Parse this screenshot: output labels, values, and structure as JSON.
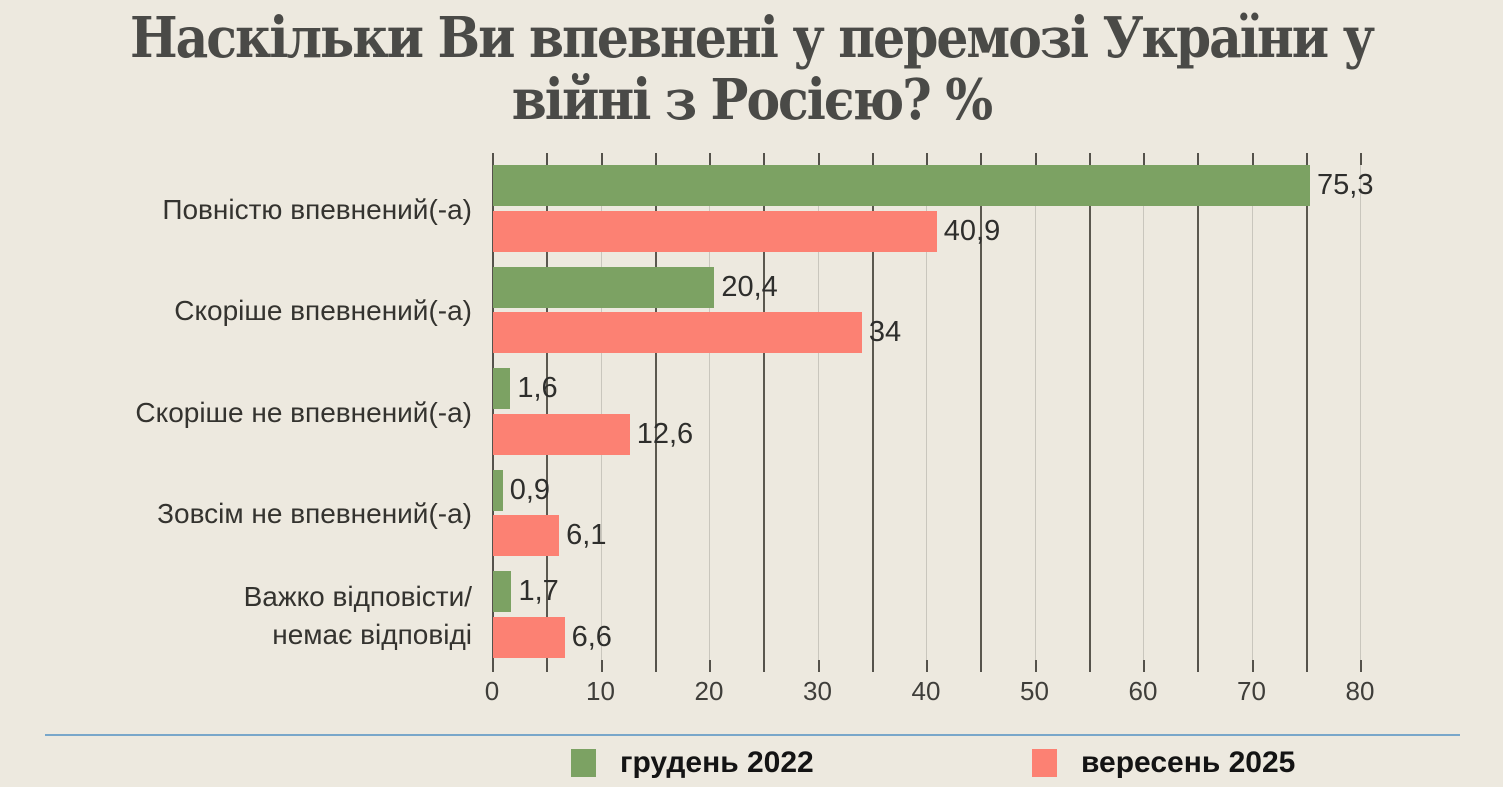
{
  "title": "Наскільки Ви впевнені у перемозі України у війні з Росією? %",
  "title_lines": [
    "Наскільки Ви впевнені у перемозі України у",
    "війні з Росією? %"
  ],
  "chart_data": {
    "type": "bar",
    "orientation": "horizontal",
    "title": "Наскільки Ви впевнені у перемозі України у війні з Росією? %",
    "units": "%",
    "categories": [
      "Повністю впевнений(-а)",
      "Скоріше впевнений(-а)",
      "Скоріше не впевнений(-а)",
      "Зовсім не впевнений(-а)",
      "Важко відповісти/\nнемає відповіді"
    ],
    "series": [
      {
        "name": "грудень 2022",
        "color": "#7CA263",
        "values": [
          75.3,
          20.4,
          1.6,
          0.9,
          1.7
        ],
        "value_labels": [
          "75,3",
          "20,4",
          "1,6",
          "0,9",
          "1,7"
        ]
      },
      {
        "name": "вересень 2025",
        "color": "#FC8173",
        "values": [
          40.9,
          34,
          12.6,
          6.1,
          6.6
        ],
        "value_labels": [
          "40,9",
          "34",
          "12,6",
          "6,1",
          "6,6"
        ]
      }
    ],
    "xlim": [
      0,
      80
    ],
    "x_tick_labels": [
      "0",
      "10",
      "20",
      "30",
      "40",
      "50",
      "60",
      "70",
      "80"
    ],
    "x_tick_values": [
      0,
      10,
      20,
      30,
      40,
      50,
      60,
      70,
      80
    ],
    "grid": "vertical lines every 5 units; darker at odd multiples of 5, lighter at multiples of 10",
    "legend_position": "bottom"
  },
  "legend": {
    "items": [
      {
        "label": "грудень 2022",
        "color": "#7CA263"
      },
      {
        "label": "вересень 2025",
        "color": "#FC8173"
      }
    ]
  },
  "colors": {
    "background": "#EDE9DF",
    "title_text": "#4A4A47",
    "category_text": "#34332F",
    "value_text": "#2E2E2C",
    "tick_text": "#3F3E3A",
    "legend_text": "#141414",
    "gridline_dark": "#5B584F",
    "gridline_light": "#C9C6BD",
    "axis_line": "#55524B",
    "divider_blue": "#79A7CA",
    "series_green": "#7CA263",
    "series_red": "#FC8173"
  }
}
